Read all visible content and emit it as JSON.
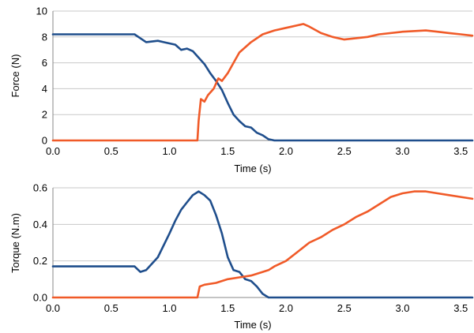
{
  "chart_data": [
    {
      "type": "line",
      "xlabel": "Time (s)",
      "ylabel": "Force (N)",
      "xlim": [
        0,
        3.6
      ],
      "ylim": [
        0,
        10
      ],
      "grid": "horizontal",
      "xticks": [
        "0.0",
        "0.5",
        "1.0",
        "1.5",
        "2.0",
        "2.5",
        "3.0",
        "3.5"
      ],
      "yticks": [
        "0",
        "2",
        "4",
        "6",
        "8",
        "10"
      ],
      "series": [
        {
          "color": "#1f4e8c",
          "x": [
            0,
            0.3,
            0.6,
            0.7,
            0.75,
            0.8,
            0.9,
            0.95,
            1.0,
            1.05,
            1.1,
            1.15,
            1.2,
            1.25,
            1.3,
            1.35,
            1.4,
            1.45,
            1.5,
            1.55,
            1.6,
            1.65,
            1.7,
            1.75,
            1.8,
            1.85,
            1.9,
            2.0,
            2.5,
            3.0,
            3.6
          ],
          "y": [
            8.2,
            8.2,
            8.2,
            8.2,
            7.9,
            7.6,
            7.7,
            7.6,
            7.5,
            7.4,
            7.0,
            7.1,
            6.9,
            6.4,
            5.9,
            5.2,
            4.6,
            3.9,
            2.9,
            2.0,
            1.5,
            1.1,
            1.0,
            0.6,
            0.4,
            0.1,
            0.0,
            0.0,
            0.0,
            0.0,
            0.0
          ]
        },
        {
          "color": "#f05a28",
          "x": [
            0,
            0.5,
            1.0,
            1.24,
            1.25,
            1.27,
            1.3,
            1.33,
            1.38,
            1.42,
            1.45,
            1.5,
            1.55,
            1.6,
            1.7,
            1.8,
            1.9,
            2.0,
            2.05,
            2.1,
            2.15,
            2.2,
            2.3,
            2.4,
            2.5,
            2.6,
            2.7,
            2.8,
            3.0,
            3.2,
            3.3,
            3.4,
            3.5,
            3.6
          ],
          "y": [
            0.0,
            0.0,
            0.0,
            0.0,
            1.5,
            3.2,
            3.0,
            3.5,
            4.0,
            4.8,
            4.6,
            5.2,
            6.0,
            6.8,
            7.6,
            8.2,
            8.5,
            8.7,
            8.8,
            8.9,
            9.0,
            8.8,
            8.3,
            8.0,
            7.8,
            7.9,
            8.0,
            8.2,
            8.4,
            8.5,
            8.4,
            8.3,
            8.2,
            8.1
          ]
        }
      ]
    },
    {
      "type": "line",
      "xlabel": "Time (s)",
      "ylabel": "Torque (N.m)",
      "xlim": [
        0,
        3.6
      ],
      "ylim": [
        0,
        0.6
      ],
      "grid": "horizontal",
      "xticks": [
        "0.0",
        "0.5",
        "1.0",
        "1.5",
        "2.0",
        "2.5",
        "3.0",
        "3.5"
      ],
      "yticks": [
        "0.0",
        "0.2",
        "0.4",
        "0.6"
      ],
      "series": [
        {
          "color": "#1f4e8c",
          "x": [
            0,
            0.3,
            0.6,
            0.7,
            0.75,
            0.8,
            0.9,
            1.0,
            1.05,
            1.1,
            1.15,
            1.2,
            1.25,
            1.3,
            1.35,
            1.4,
            1.45,
            1.5,
            1.55,
            1.6,
            1.65,
            1.7,
            1.75,
            1.8,
            1.85,
            1.9,
            2.0,
            2.5,
            3.0,
            3.6
          ],
          "y": [
            0.17,
            0.17,
            0.17,
            0.17,
            0.14,
            0.15,
            0.22,
            0.35,
            0.42,
            0.48,
            0.52,
            0.56,
            0.58,
            0.56,
            0.53,
            0.45,
            0.35,
            0.22,
            0.15,
            0.14,
            0.1,
            0.09,
            0.06,
            0.02,
            0.0,
            0.0,
            0.0,
            0.0,
            0.0,
            0.0
          ]
        },
        {
          "color": "#f05a28",
          "x": [
            0,
            0.5,
            1.0,
            1.24,
            1.26,
            1.3,
            1.4,
            1.5,
            1.6,
            1.7,
            1.8,
            1.85,
            1.9,
            2.0,
            2.1,
            2.2,
            2.3,
            2.4,
            2.5,
            2.6,
            2.7,
            2.8,
            2.9,
            3.0,
            3.1,
            3.2,
            3.3,
            3.4,
            3.5,
            3.6
          ],
          "y": [
            0.0,
            0.0,
            0.0,
            0.0,
            0.06,
            0.07,
            0.08,
            0.1,
            0.11,
            0.12,
            0.14,
            0.15,
            0.17,
            0.2,
            0.25,
            0.3,
            0.33,
            0.37,
            0.4,
            0.44,
            0.47,
            0.51,
            0.55,
            0.57,
            0.58,
            0.58,
            0.57,
            0.56,
            0.55,
            0.54
          ]
        }
      ]
    }
  ]
}
